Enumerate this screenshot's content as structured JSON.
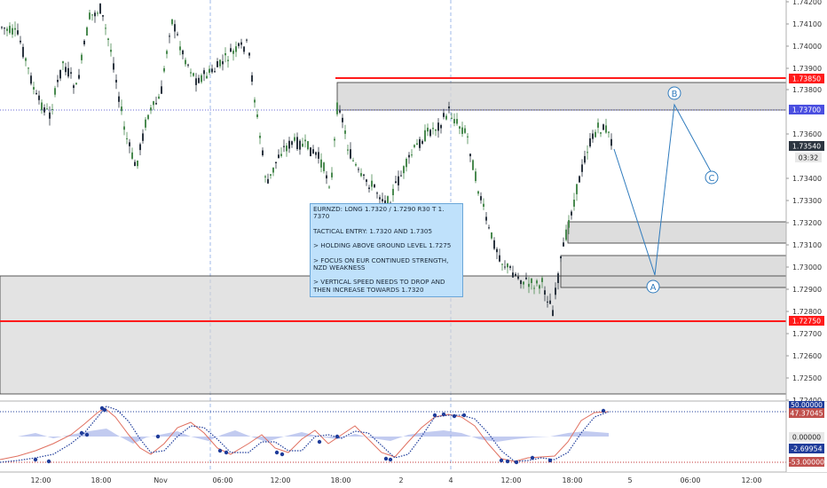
{
  "price_axis": {
    "ticks": [
      "1.74200",
      "1.74100",
      "1.74000",
      "1.73900",
      "1.73800",
      "1.73600",
      "1.73400",
      "1.73300",
      "1.73200",
      "1.73100",
      "1.73000",
      "1.72900",
      "1.72800",
      "1.72700",
      "1.72600",
      "1.72500",
      "1.72400"
    ],
    "labels": {
      "top_resistance": "1.73850",
      "mid": "1.73700",
      "last_price": "1.73540",
      "countdown": "03:32",
      "support": "1.72750"
    }
  },
  "time_axis": [
    "12:00",
    "18:00",
    "Nov",
    "06:00",
    "12:00",
    "18:00",
    "2",
    "4",
    "12:00",
    "18:00",
    "5",
    "06:00",
    "12:00"
  ],
  "indicator_axis": {
    "labels": {
      "upper": "50.00000",
      "value1": "47.37045",
      "zero": "0.00000",
      "value2": "-2.69954",
      "lower": "-53.00000"
    }
  },
  "wave_labels": [
    "A",
    "B",
    "C"
  ],
  "note": {
    "line1": "EURNZD: LONG 1.7320 / 1.7290 R30 T 1. 7370",
    "line2": "TACTICAL ENTRY: 1.7320 AND 1.7305",
    "line3": "> HOLDING ABOVE GROUND LEVEL 1.7275",
    "line4": "> FOCUS ON EUR CONTINUED STRENGTH, NZD WEAKNESS",
    "line5": "> VERTICAL SPEED NEEDS TO DROP AND THEN INCREASE TOWARDS 1.7320"
  },
  "colors": {
    "up": "#4a8a50",
    "down": "#2c3540",
    "red_line": "#ff1a1a",
    "zone_fill": "#d4d4d4",
    "blue_label": "#4a4ee0",
    "wave": "#2f7bbd",
    "indicator_dotted": "#1f3c9a",
    "indicator_line": "#e07060",
    "histogram": "#9aa8e6"
  }
}
